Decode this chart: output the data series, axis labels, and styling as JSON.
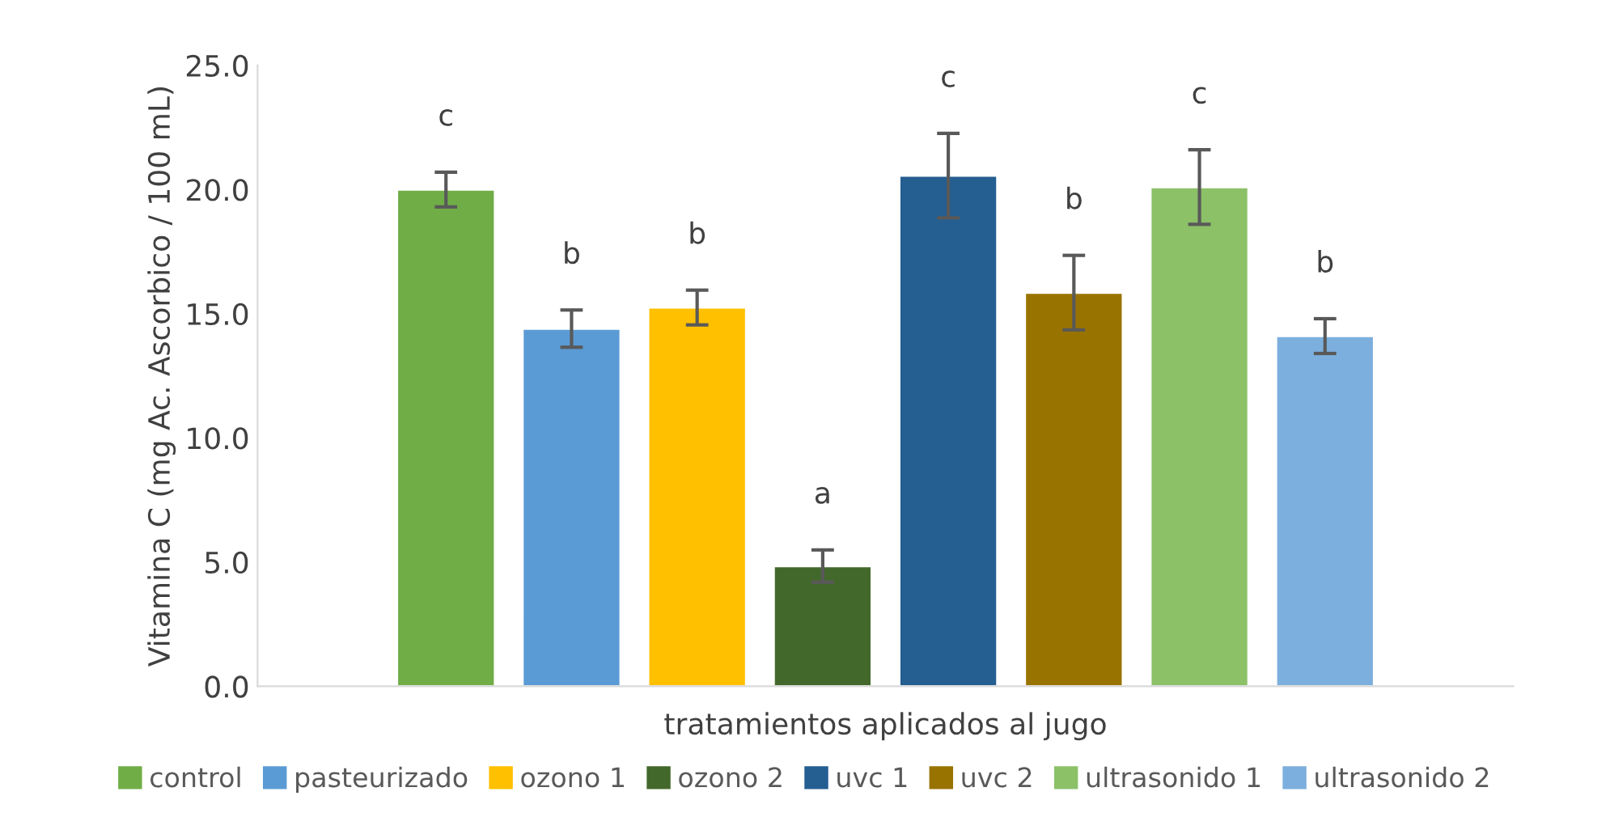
{
  "chart_data": {
    "type": "bar",
    "xlabel": "tratamientos aplicados al jugo",
    "ylabel": "Vitamina C (mg Ac. Ascorbico / 100 mL)",
    "categories": [
      null
    ],
    "series": [
      {
        "name": "control",
        "color": "#70ad47",
        "values": [
          20.0
        ],
        "errors": [
          0.7
        ],
        "value_labels": [
          "c"
        ]
      },
      {
        "name": "pasteurizado",
        "color": "#5b9bd5",
        "values": [
          14.4
        ],
        "errors": [
          0.75
        ],
        "value_labels": [
          "b"
        ]
      },
      {
        "name": "ozono 1",
        "color": "#ffc000",
        "values": [
          15.25
        ],
        "errors": [
          0.7
        ],
        "value_labels": [
          "b"
        ]
      },
      {
        "name": "ozono 2",
        "color": "#43682b",
        "values": [
          4.84
        ],
        "errors": [
          0.65
        ],
        "value_labels": [
          "a"
        ]
      },
      {
        "name": "uvc 1",
        "color": "#255e91",
        "values": [
          20.56
        ],
        "errors": [
          1.7
        ],
        "value_labels": [
          "c"
        ]
      },
      {
        "name": "uvc 2",
        "color": "#997300",
        "values": [
          15.85
        ],
        "errors": [
          1.5
        ],
        "value_labels": [
          "b"
        ]
      },
      {
        "name": "ultrasonido 1",
        "color": "#8cc168",
        "values": [
          20.1
        ],
        "errors": [
          1.5
        ],
        "value_labels": [
          "c"
        ]
      },
      {
        "name": "ultrasonido 2",
        "color": "#7cafdd",
        "values": [
          14.1
        ],
        "errors": [
          0.7
        ],
        "value_labels": [
          "b"
        ]
      }
    ],
    "ylim": [
      0,
      25
    ],
    "yticks": [
      {
        "value": 0,
        "label": "0.0"
      },
      {
        "value": 5,
        "label": "5.0"
      },
      {
        "value": 10,
        "label": "10.0"
      },
      {
        "value": 15,
        "label": "15.0"
      },
      {
        "value": 20,
        "label": "20.0"
      },
      {
        "value": 25,
        "label": "25.0"
      }
    ],
    "grid": false,
    "legend": "bottom"
  }
}
